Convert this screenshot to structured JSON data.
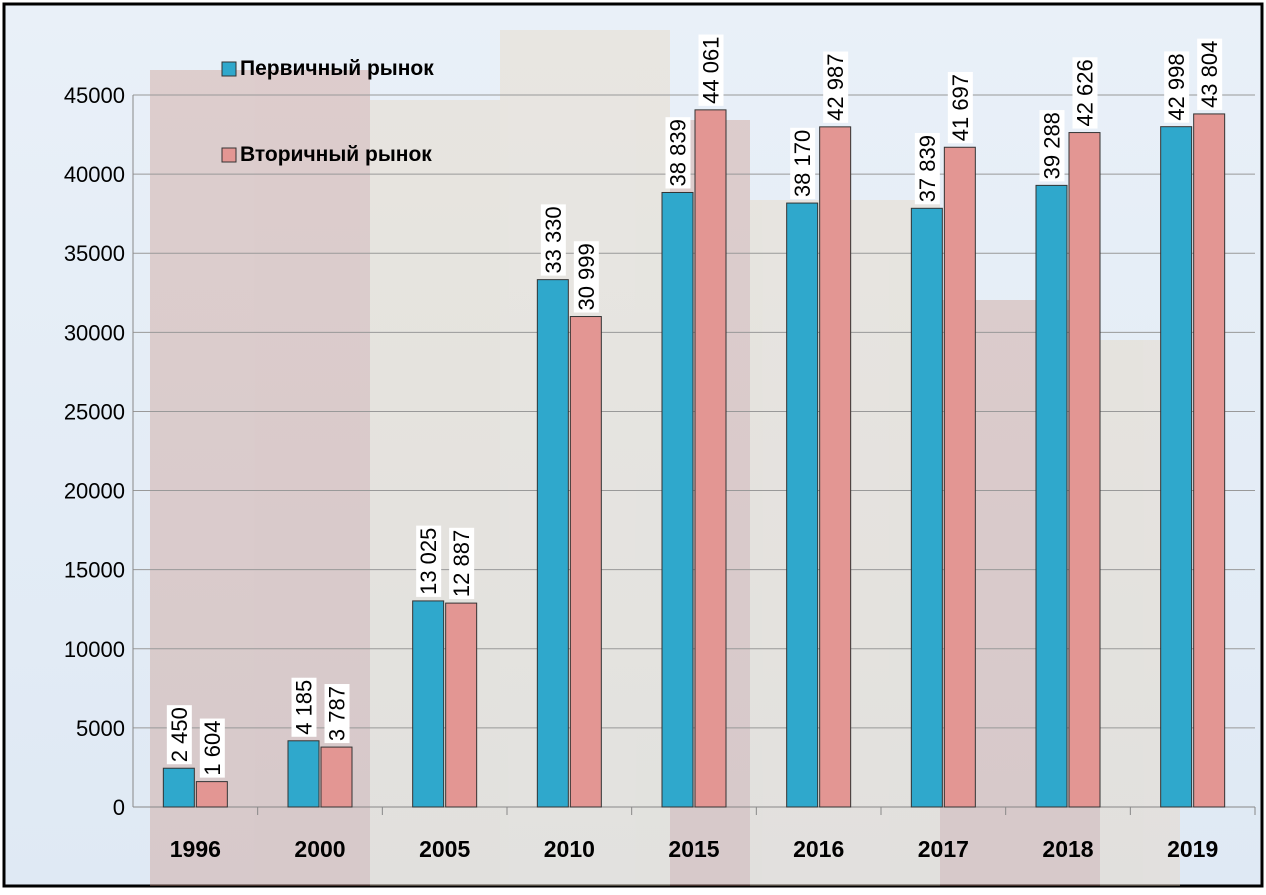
{
  "chart_data": {
    "type": "bar",
    "categories": [
      "1996",
      "2000",
      "2005",
      "2010",
      "2015",
      "2016",
      "2017",
      "2018",
      "2019"
    ],
    "series": [
      {
        "name": "Первичный рынок",
        "color": "#2fa8cc",
        "values": [
          2450,
          4185,
          13025,
          33330,
          38839,
          38170,
          37839,
          39288,
          42998
        ],
        "value_labels": [
          "2 450",
          "4 185",
          "13 025",
          "33 330",
          "38 839",
          "38 170",
          "37 839",
          "39 288",
          "42 998"
        ]
      },
      {
        "name": "Вторичный рынок",
        "color": "#e39693",
        "values": [
          1604,
          3787,
          12887,
          30999,
          44061,
          42987,
          41697,
          42626,
          43804
        ],
        "value_labels": [
          "1 604",
          "3 787",
          "12 887",
          "30 999",
          "44 061",
          "42 987",
          "41 697",
          "42 626",
          "43 804"
        ]
      }
    ],
    "ylim": [
      0,
      45000
    ],
    "yticks": [
      0,
      5000,
      10000,
      15000,
      20000,
      25000,
      30000,
      35000,
      40000,
      45000
    ],
    "grid": true
  }
}
